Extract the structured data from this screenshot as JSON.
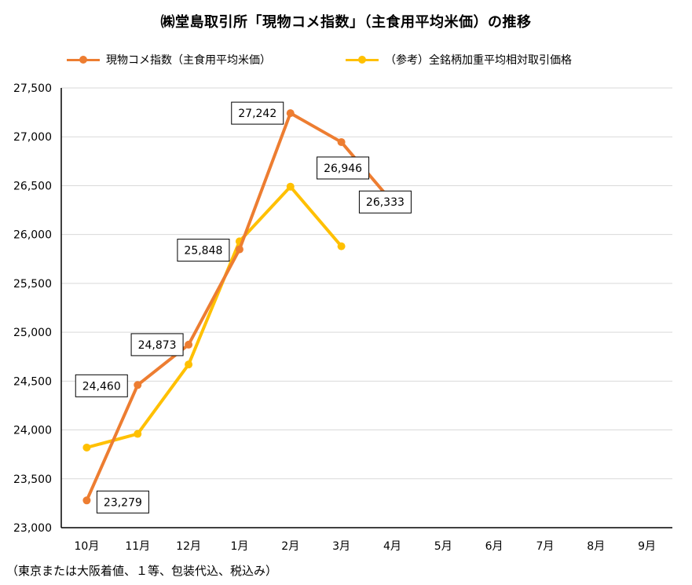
{
  "chart_data": {
    "type": "line",
    "title": "㈱堂島取引所「現物コメ指数」（主食用平均米価）の推移",
    "categories": [
      "10月",
      "11月",
      "12月",
      "1月",
      "2月",
      "3月",
      "4月",
      "5月",
      "6月",
      "7月",
      "8月",
      "9月"
    ],
    "ylim": [
      23000,
      27500
    ],
    "yticks": [
      23000,
      23500,
      24000,
      24500,
      25000,
      25500,
      26000,
      26500,
      27000,
      27500
    ],
    "ytick_labels": [
      "23,000",
      "23,500",
      "24,000",
      "24,500",
      "25,000",
      "25,500",
      "26,000",
      "26,500",
      "27,000",
      "27,500"
    ],
    "grid": "horizontal",
    "legend_position": "top",
    "series": [
      {
        "name": "現物コメ指数（主食用平均米価）",
        "color": "#ED7D31",
        "values": [
          23279,
          24460,
          24873,
          25848,
          27242,
          26946,
          26333,
          null,
          null,
          null,
          null,
          null
        ],
        "data_labels": [
          "23,279",
          "24,460",
          "24,873",
          "25,848",
          "27,242",
          "26,946",
          "26,333",
          null,
          null,
          null,
          null,
          null
        ]
      },
      {
        "name": "（参考）全銘柄加重平均相対取引価格",
        "color": "#FFC000",
        "values": [
          23820,
          23960,
          24670,
          25930,
          26490,
          25880,
          null,
          null,
          null,
          null,
          null,
          null
        ]
      }
    ]
  },
  "footnote": "（東京または大阪着値、１等、包装代込、税込み）"
}
